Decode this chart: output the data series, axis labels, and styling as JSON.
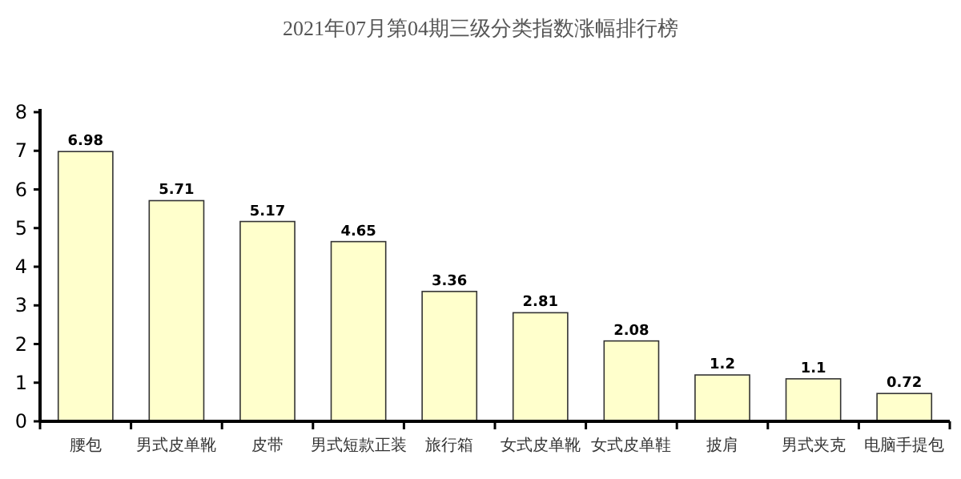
{
  "chart_data": {
    "type": "bar",
    "title": "2021年07月第04期三级分类指数涨幅排行榜",
    "categories": [
      "腰包",
      "男式皮单靴",
      "皮带",
      "男式短款正装",
      "旅行箱",
      "女式皮单靴",
      "女式皮单鞋",
      "披肩",
      "男式夹克",
      "电脑手提包"
    ],
    "values": [
      6.98,
      5.71,
      5.17,
      4.65,
      3.36,
      2.81,
      2.08,
      1.2,
      1.1,
      0.72
    ],
    "color": "#ffffcc",
    "ylim": [
      0,
      8
    ],
    "yticks": [
      0,
      1,
      2,
      3,
      4,
      5,
      6,
      7,
      8
    ],
    "grid": false,
    "data_labels": true
  }
}
